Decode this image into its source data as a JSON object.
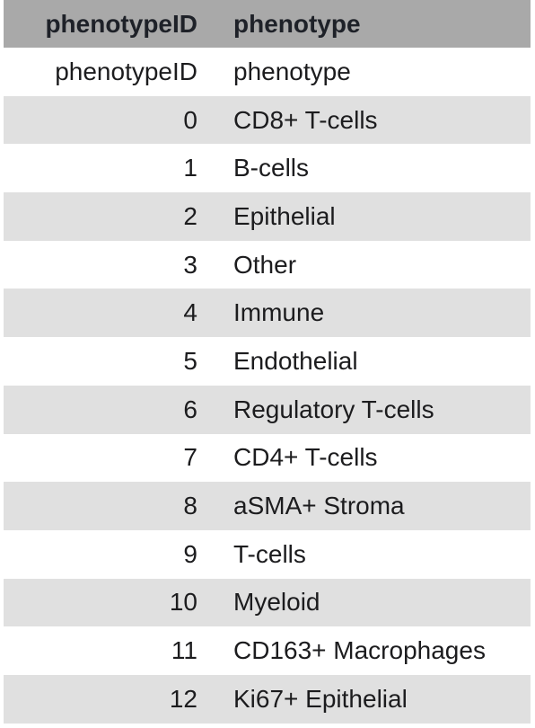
{
  "table": {
    "headers": [
      "phenotypeID",
      "phenotype"
    ],
    "rows": [
      [
        "phenotypeID",
        "phenotype"
      ],
      [
        "0",
        "CD8+ T-cells"
      ],
      [
        "1",
        "B-cells"
      ],
      [
        "2",
        "Epithelial"
      ],
      [
        "3",
        "Other"
      ],
      [
        "4",
        "Immune"
      ],
      [
        "5",
        "Endothelial"
      ],
      [
        "6",
        "Regulatory T-cells"
      ],
      [
        "7",
        "CD4+ T-cells"
      ],
      [
        "8",
        "aSMA+ Stroma"
      ],
      [
        "9",
        "T-cells"
      ],
      [
        "10",
        "Myeloid"
      ],
      [
        "11",
        "CD163+ Macrophages"
      ],
      [
        "12",
        "Ki67+ Epithelial"
      ]
    ]
  },
  "colors": {
    "header_bg": "#a9a9a9",
    "stripe_bg": "#e0e0e0",
    "row_bg": "#ffffff"
  }
}
